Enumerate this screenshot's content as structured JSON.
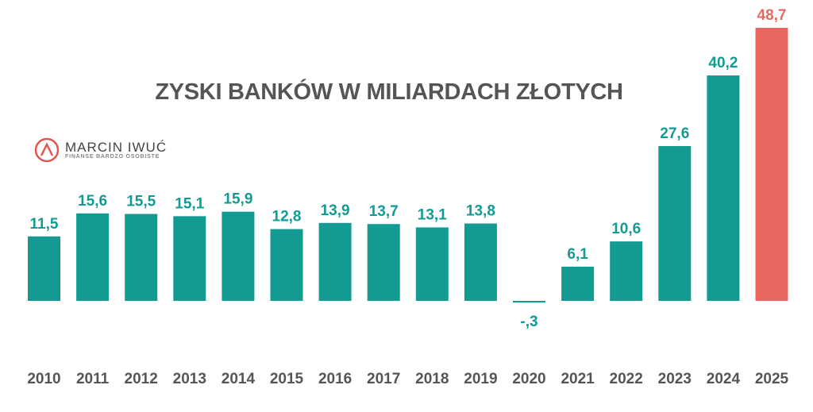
{
  "logo": {
    "name": "MARCIN IWUĆ",
    "tagline": "FINANSE BARDZO OSOBISTE"
  },
  "chart_data": {
    "type": "bar",
    "title": "ZYSKI BANKÓW W MILIARDACH ZŁOTYCH",
    "categories": [
      "2010",
      "2011",
      "2012",
      "2013",
      "2014",
      "2015",
      "2016",
      "2017",
      "2018",
      "2019",
      "2020",
      "2021",
      "2022",
      "2023",
      "2024",
      "2025"
    ],
    "values": [
      11.5,
      15.6,
      15.5,
      15.1,
      15.9,
      12.8,
      13.9,
      13.7,
      13.1,
      13.8,
      -0.3,
      6.1,
      10.6,
      27.6,
      40.2,
      48.7
    ],
    "data_labels": [
      "11,5",
      "15,6",
      "15,5",
      "15,1",
      "15,9",
      "12,8",
      "13,9",
      "13,7",
      "13,1",
      "13,8",
      "-,3",
      "6,1",
      "10,6",
      "27,6",
      "40,2",
      "48,7"
    ],
    "highlight_index": 15,
    "colors": {
      "bar": "#129a93",
      "highlight": "#ea6660",
      "axis_text": "#555555"
    },
    "xlabel": "",
    "ylabel": "",
    "ylim": [
      -0.3,
      48.7
    ],
    "grid": false,
    "legend": "none"
  }
}
